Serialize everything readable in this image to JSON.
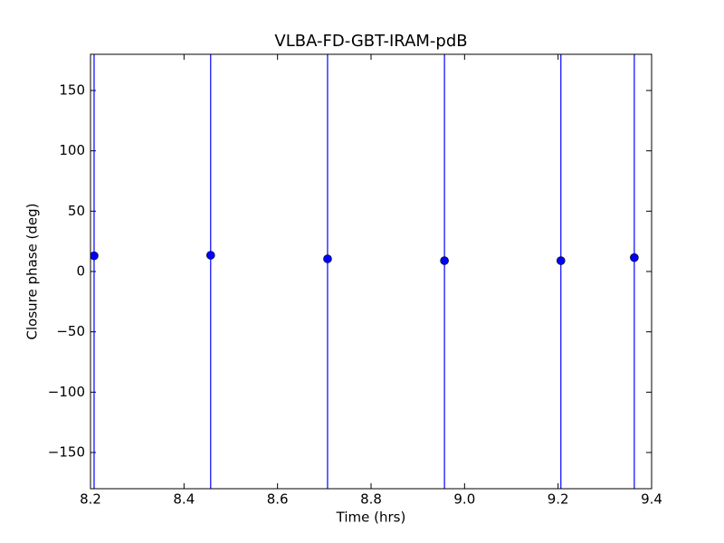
{
  "chart_data": {
    "type": "scatter",
    "title": "VLBA-FD-GBT-IRAM-pdB",
    "x_label": "Time (hrs)",
    "y_label": "Closure phase (deg)",
    "x": [
      8.2077,
      8.457,
      8.707,
      8.957,
      9.206,
      9.363
    ],
    "series": [
      {
        "color": "#0000ff",
        "values": [
          13,
          13.5,
          10.5,
          9,
          9,
          11.5
        ],
        "errors": [
          200,
          200,
          200,
          200,
          200,
          200
        ]
      }
    ],
    "xlim": [
      8.2,
      9.4
    ],
    "ylim": [
      -180,
      180
    ],
    "xticks": [
      8.2,
      8.4,
      8.6,
      8.8,
      {
        "value": 9.0,
        "label": "9.0"
      },
      9.2,
      9.4
    ],
    "yticks": [
      {
        "value": -150,
        "label": "−150"
      },
      {
        "value": -100,
        "label": "−100"
      },
      {
        "value": -50,
        "label": "−50"
      },
      0,
      50,
      100,
      150
    ],
    "grid": false
  }
}
